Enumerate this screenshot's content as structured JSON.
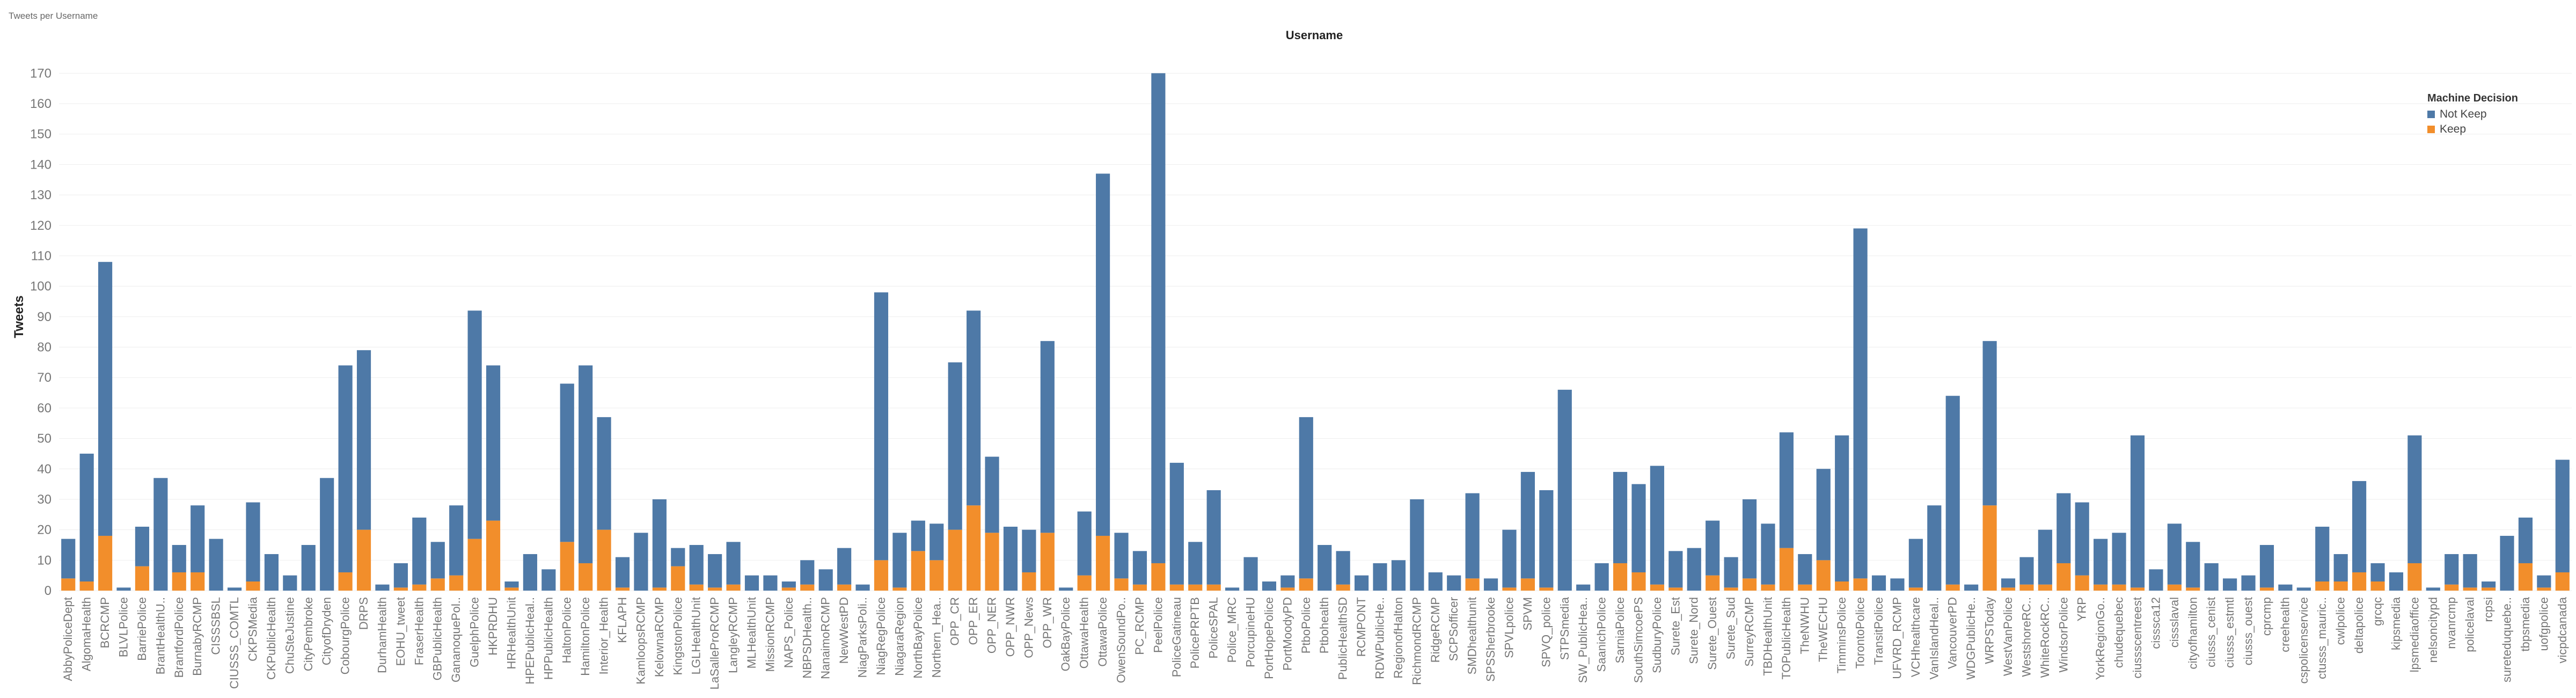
{
  "sheet_title": "Tweets per Username",
  "chart_data": {
    "type": "bar",
    "stacked": true,
    "title": "Username",
    "xlabel": "",
    "ylabel": "Tweets",
    "ylim": [
      0,
      175
    ],
    "yticks": [
      0,
      10,
      20,
      30,
      40,
      50,
      60,
      70,
      80,
      90,
      100,
      110,
      120,
      130,
      140,
      150,
      160,
      170
    ],
    "grid": true,
    "legend": {
      "title": "Machine Decision",
      "placement": "top-right"
    },
    "colors": {
      "Not Keep": "#4e79a7",
      "Keep": "#f28e2b"
    },
    "categories": [
      "AbbyPoliceDept",
      "AlgomaHealth",
      "BCRCMP",
      "BLVLPolice",
      "BarriePolice",
      "BrantHealthU..",
      "BrantfordPolice",
      "BurnabyRCMP",
      "CISSSBSL",
      "CIUSSS_COMTL",
      "CKPSMedia",
      "CKPublicHealth",
      "ChuSteJustine",
      "CityPembroke",
      "CityofDryden",
      "CobourgPolice",
      "DRPS",
      "DurhamHealth",
      "EOHU_tweet",
      "FraserHealth",
      "GBPublicHealth",
      "GananoquePol..",
      "GuelphPolice",
      "HKPRDHU",
      "HRHealthUnit",
      "HPEPublicHeal..",
      "HPPublicHealth",
      "HaltonPolice",
      "HamiltonPolice",
      "Interior_Health",
      "KFLAPH",
      "KamloopsRCMP",
      "KelownaRCMP",
      "KingstonPolice",
      "LGLHealthUnit",
      "LaSalleProRCMP",
      "LangleyRCMP",
      "MLHealthUnit",
      "MissionRCMP",
      "NAPS_Police",
      "NBPSDHealth..",
      "NanaimoRCMP",
      "NewWestPD",
      "NiagParksPoli..",
      "NiagRegPolice",
      "NiagaraRegion",
      "NorthBayPolice",
      "Northern_Hea..",
      "OPP_CR",
      "OPP_ER",
      "OPP_NER",
      "OPP_NWR",
      "OPP_News",
      "OPP_WR",
      "OakBayPolice",
      "OttawaHealth",
      "OttawaPolice",
      "OwenSoundPo..",
      "PC_RCMP",
      "PeelPolice",
      "PoliceGatineau",
      "PolicePRPTB",
      "PoliceSPAL",
      "Police_MRC",
      "PorcupineHU",
      "PortHopePolice",
      "PortMoodyPD",
      "PtboPolice",
      "Ptbohealth",
      "PublicHealthSD",
      "RCMPONT",
      "RDWPublicHe..",
      "RegionofHalton",
      "RichmondRCMP",
      "RidgeRCMP",
      "SCPSofficer",
      "SMDhealthunit",
      "SPSSherbrooke",
      "SPVLpolice",
      "SPVM",
      "SPVQ_police",
      "STPSmedia",
      "SW_PublicHea..",
      "SaanichPolice",
      "SarniaPolice",
      "SouthSimcoePS",
      "SudburyPolice",
      "Surete_Est",
      "Surete_Nord",
      "Surete_Ouest",
      "Surete_Sud",
      "SurreyRCMP",
      "TBDHealthUnit",
      "TOPublicHealth",
      "TheNWHU",
      "TheWECHU",
      "TimminsPolice",
      "TorontoPolice",
      "TransitPolice",
      "UFVRD_RCMP",
      "VCHhealthcare",
      "VanIslandHeal..",
      "VancouverPD",
      "WDGPublicHe..",
      "WRPSToday",
      "WestVanPolice",
      "WestshoreRC..",
      "WhiteRockRC..",
      "WindsorPolice",
      "YRP",
      "YorkRegionGo..",
      "chudequebec",
      "ciussscentreest",
      "cisssca12",
      "cissslaval",
      "cityofhamilton",
      "ciusss_cenist",
      "ciusss_estmtl",
      "ciusss_ouest",
      "cprcmp",
      "creehealth",
      "cspolicenservice",
      "ctusss_mauric..",
      "cwlpolice",
      "deltapolice",
      "grcqc",
      "kipsmedia",
      "lpsmediaoffice",
      "nelsoncitypd",
      "nvanrcmp",
      "policelaval",
      "rcpsi",
      "sureteduquebe..",
      "tbpsmedia",
      "uofgpolice",
      "vicpdcanada"
    ],
    "series": [
      {
        "name": "Keep",
        "values": [
          4,
          3,
          18,
          0,
          8,
          0,
          6,
          6,
          0,
          0,
          3,
          0,
          0,
          0,
          0,
          6,
          20,
          0,
          1,
          2,
          4,
          5,
          17,
          23,
          1,
          0,
          0,
          16,
          9,
          20,
          1,
          0,
          1,
          8,
          2,
          1,
          2,
          0,
          0,
          1,
          2,
          0,
          2,
          0,
          10,
          1,
          13,
          10,
          20,
          28,
          19,
          0,
          6,
          19,
          0,
          5,
          18,
          4,
          2,
          9,
          2,
          2,
          2,
          0,
          0,
          0,
          1,
          4,
          0,
          2,
          0,
          0,
          0,
          0,
          0,
          0,
          4,
          0,
          1,
          4,
          1,
          0,
          0,
          0,
          9,
          6,
          2,
          1,
          0,
          5,
          1,
          4,
          2,
          14,
          2,
          10,
          3,
          4,
          0,
          0,
          1,
          0,
          2,
          0,
          28,
          1,
          2,
          2,
          9,
          5,
          2,
          2,
          1,
          0,
          2,
          1,
          0,
          0,
          0,
          1,
          0,
          0,
          3,
          3,
          6,
          3,
          0,
          9,
          0,
          2,
          1,
          1,
          0,
          9,
          1,
          6
        ]
      },
      {
        "name": "Not Keep",
        "values": [
          13,
          42,
          90,
          1,
          13,
          37,
          9,
          22,
          17,
          1,
          26,
          12,
          5,
          15,
          37,
          68,
          59,
          2,
          8,
          22,
          12,
          23,
          75,
          51,
          2,
          12,
          7,
          52,
          65,
          37,
          10,
          19,
          29,
          6,
          13,
          11,
          14,
          5,
          5,
          2,
          8,
          7,
          12,
          2,
          88,
          18,
          10,
          12,
          55,
          64,
          25,
          21,
          14,
          63,
          1,
          21,
          119,
          15,
          11,
          161,
          40,
          14,
          31,
          1,
          11,
          3,
          4,
          53,
          15,
          11,
          5,
          9,
          10,
          30,
          6,
          5,
          28,
          4,
          19,
          35,
          32,
          66,
          2,
          9,
          30,
          29,
          39,
          12,
          14,
          18,
          10,
          26,
          20,
          38,
          10,
          30,
          48,
          115,
          5,
          4,
          16,
          28,
          62,
          2,
          54,
          3,
          9,
          18,
          23,
          24,
          15,
          17,
          50,
          7,
          20,
          15,
          9,
          4,
          5,
          14,
          2,
          1,
          18,
          9,
          30,
          6,
          6,
          42,
          1,
          10,
          11,
          2,
          18,
          15,
          4,
          37
        ]
      }
    ]
  }
}
